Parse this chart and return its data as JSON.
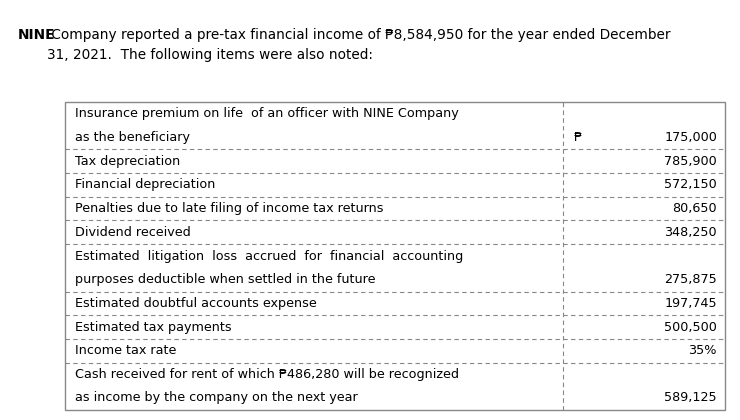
{
  "title_bold": "NINE",
  "title_rest": " Company reported a pre-tax financial income of ₱8,584,950 for the year ended December\n31, 2021.  The following items were also noted:",
  "rows": [
    {
      "label_line1": "Insurance premium on life  of an officer with NINE Company",
      "label_line2": "as the beneficiary",
      "value": "175,000",
      "peso_sign": true
    },
    {
      "label_line1": "Tax depreciation",
      "label_line2": "",
      "value": "785,900",
      "peso_sign": false
    },
    {
      "label_line1": "Financial depreciation",
      "label_line2": "",
      "value": "572,150",
      "peso_sign": false
    },
    {
      "label_line1": "Penalties due to late filing of income tax returns",
      "label_line2": "",
      "value": "80,650",
      "peso_sign": false
    },
    {
      "label_line1": "Dividend received",
      "label_line2": "",
      "value": "348,250",
      "peso_sign": false
    },
    {
      "label_line1": "Estimated  litigation  loss  accrued  for  financial  accounting",
      "label_line2": "purposes deductible when settled in the future",
      "value": "275,875",
      "peso_sign": false
    },
    {
      "label_line1": "Estimated doubtful accounts expense",
      "label_line2": "",
      "value": "197,745",
      "peso_sign": false
    },
    {
      "label_line1": "Estimated tax payments",
      "label_line2": "",
      "value": "500,500",
      "peso_sign": false
    },
    {
      "label_line1": "Income tax rate",
      "label_line2": "",
      "value": "35%",
      "peso_sign": false
    },
    {
      "label_line1": "Cash received for rent of which ₱486,280 will be recognized",
      "label_line2": "as income by the company on the next year",
      "value": "589,125",
      "peso_sign": false
    }
  ],
  "bg_color": "#ffffff",
  "text_color": "#000000",
  "border_color": "#888888",
  "font_size": 9.2,
  "title_font_size": 9.8,
  "fig_width": 7.4,
  "fig_height": 4.2,
  "dpi": 100
}
